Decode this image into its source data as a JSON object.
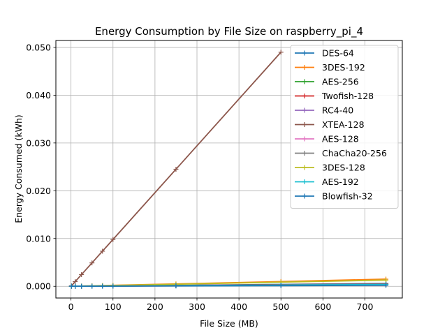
{
  "chart_data": {
    "type": "line",
    "title": "Energy Consumption by File Size on raspberry_pi_4",
    "xlabel": "File Size (MB)",
    "ylabel": "Energy Consumed (kWh)",
    "xlim": [
      -36,
      789
    ],
    "ylim": [
      -0.00245,
      0.05145
    ],
    "xticks": [
      0,
      100,
      200,
      300,
      400,
      500,
      600,
      700
    ],
    "yticks": [
      0.0,
      0.01,
      0.02,
      0.03,
      0.04,
      0.05
    ],
    "ytick_labels": [
      "0.000",
      "0.010",
      "0.020",
      "0.030",
      "0.040",
      "0.050"
    ],
    "grid": true,
    "legend_position": "top-right",
    "series": [
      {
        "name": "DES-64",
        "color": "#1f77b4",
        "x": [
          1,
          10,
          25,
          50,
          75,
          100,
          250,
          500,
          750
        ],
        "y": [
          1e-05,
          1e-05,
          2e-05,
          4e-05,
          6e-05,
          8e-05,
          0.0002,
          0.0004,
          0.0006
        ]
      },
      {
        "name": "3DES-192",
        "color": "#ff7f0e",
        "x": [
          1,
          10,
          25,
          50,
          75,
          100,
          250,
          500,
          750
        ],
        "y": [
          2e-05,
          3e-05,
          6e-05,
          0.00011,
          0.00016,
          0.00021,
          0.0005,
          0.001,
          0.0015
        ]
      },
      {
        "name": "AES-256",
        "color": "#2ca02c",
        "x": [
          1,
          10,
          25,
          50,
          75,
          100,
          250,
          500,
          750
        ],
        "y": [
          1e-05,
          1e-05,
          2e-05,
          3e-05,
          4e-05,
          5e-05,
          0.00013,
          0.00026,
          0.0004
        ]
      },
      {
        "name": "Twofish-128",
        "color": "#d62728",
        "x": [
          1,
          10,
          25,
          50,
          75,
          100,
          250,
          500,
          750
        ],
        "y": [
          1e-05,
          1e-05,
          2e-05,
          4e-05,
          5e-05,
          7e-05,
          0.00017,
          0.00034,
          0.0005
        ]
      },
      {
        "name": "RC4-40",
        "color": "#9467bd",
        "x": [
          1,
          10,
          25,
          50,
          75,
          100,
          250,
          500,
          750
        ],
        "y": [
          1e-05,
          1e-05,
          1e-05,
          2e-05,
          3e-05,
          4e-05,
          0.0001,
          0.0002,
          0.0003
        ]
      },
      {
        "name": "XTEA-128",
        "color": "#8c564b",
        "x": [
          1,
          10,
          25,
          50,
          75,
          100,
          250,
          500
        ],
        "y": [
          0.0001,
          0.00098,
          0.00245,
          0.0049,
          0.00735,
          0.0098,
          0.0245,
          0.049
        ]
      },
      {
        "name": "AES-128",
        "color": "#e377c2",
        "x": [
          1,
          10,
          25,
          50,
          75,
          100,
          250,
          500,
          750
        ],
        "y": [
          1e-05,
          1e-05,
          2e-05,
          3e-05,
          4e-05,
          5e-05,
          0.00012,
          0.00024,
          0.00036
        ]
      },
      {
        "name": "ChaCha20-256",
        "color": "#7f7f7f",
        "x": [
          1,
          10,
          25,
          50,
          75,
          100,
          250,
          500,
          750
        ],
        "y": [
          1e-05,
          1e-05,
          2e-05,
          3e-05,
          5e-05,
          6e-05,
          0.00015,
          0.0003,
          0.00045
        ]
      },
      {
        "name": "3DES-128",
        "color": "#bcbd22",
        "x": [
          1,
          10,
          25,
          50,
          75,
          100,
          250,
          500,
          750
        ],
        "y": [
          2e-05,
          3e-05,
          5e-05,
          9e-05,
          0.00013,
          0.00017,
          0.00043,
          0.00087,
          0.0013
        ]
      },
      {
        "name": "AES-192",
        "color": "#17becf",
        "x": [
          1,
          10,
          25,
          50,
          75,
          100,
          250,
          500,
          750
        ],
        "y": [
          1e-05,
          1e-05,
          2e-05,
          3e-05,
          4e-05,
          5e-05,
          0.00013,
          0.00025,
          0.00038
        ]
      },
      {
        "name": "Blowfish-32",
        "color": "#1f77b4",
        "x": [
          1,
          10,
          25,
          50,
          75,
          100,
          250,
          500,
          750
        ],
        "y": [
          1e-05,
          1e-05,
          1e-05,
          2e-05,
          2e-05,
          3e-05,
          7e-05,
          0.00013,
          0.0002
        ]
      }
    ]
  }
}
